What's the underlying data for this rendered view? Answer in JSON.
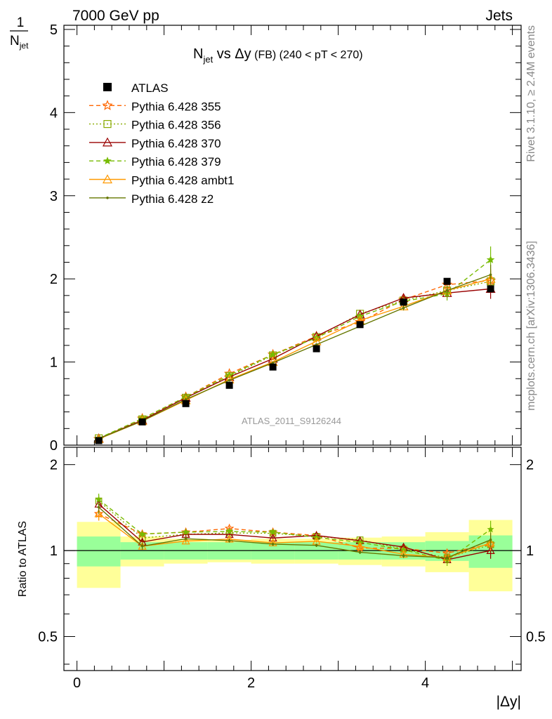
{
  "header": {
    "left": "7000 GeV pp",
    "right": "Jets"
  },
  "side_texts": {
    "rivet": "Rivet 3.1.10, ≥ 2.4M events",
    "mcplots": "mcplots.cern.ch [arXiv:1306.3436]"
  },
  "watermark": "ATLAS_2011_S9126244",
  "chart_data": {
    "type": "line",
    "title": {
      "main": "N",
      "main_sub": "jet",
      "vs": " vs Δy",
      "fb": " (FB)",
      "range": " (240 < pT < 270)"
    },
    "ylabel": {
      "top": "1",
      "bottom": "N",
      "bottom_sub": "jet"
    },
    "xlabel": "|Δy|",
    "ratio_ylabel": "Ratio to ATLAS",
    "xlim": [
      -0.15,
      5.1
    ],
    "ylim": [
      0,
      5.05
    ],
    "ratio_ylim": [
      0.38,
      2.3
    ],
    "x_ticks": [
      "0",
      "2",
      "4"
    ],
    "y_ticks": [
      "0",
      "1",
      "2",
      "3",
      "4",
      "5"
    ],
    "ratio_ticks": [
      "0.5",
      "1",
      "2"
    ],
    "x": [
      0.25,
      0.75,
      1.25,
      1.75,
      2.25,
      2.75,
      3.25,
      3.75,
      4.25,
      4.75
    ],
    "data_bins": [
      [
        0,
        0.5
      ],
      [
        0.5,
        1.0
      ],
      [
        1.0,
        1.5
      ],
      [
        1.5,
        2.0
      ],
      [
        2.0,
        2.5
      ],
      [
        2.5,
        3.0
      ],
      [
        3.0,
        3.5
      ],
      [
        3.5,
        4.0
      ],
      [
        4.0,
        4.5
      ],
      [
        4.5,
        5.0
      ]
    ],
    "data": {
      "name": "ATLAS",
      "values": [
        0.055,
        0.28,
        0.5,
        0.72,
        0.94,
        1.16,
        1.45,
        1.72,
        1.97,
        1.88
      ],
      "band_stat_rel": [
        0.12,
        0.07,
        0.07,
        0.07,
        0.07,
        0.07,
        0.07,
        0.07,
        0.08,
        0.13
      ],
      "band_total_rel": [
        0.26,
        0.12,
        0.1,
        0.09,
        0.1,
        0.1,
        0.11,
        0.12,
        0.16,
        0.28
      ]
    },
    "series": [
      {
        "name": "Pythia 6.428 355",
        "color": "#ff6600",
        "dash": "6,4",
        "marker": "star-open",
        "values": [
          0.074,
          0.32,
          0.58,
          0.86,
          1.09,
          1.31,
          1.48,
          1.75,
          1.93,
          1.98
        ],
        "errors": [
          0.004,
          0.008,
          0.01,
          0.012,
          0.014,
          0.016,
          0.02,
          0.03,
          0.06,
          0.12
        ]
      },
      {
        "name": "Pythia 6.428 356",
        "color": "#88aa00",
        "dash": "2,3",
        "marker": "square-open",
        "values": [
          0.082,
          0.31,
          0.57,
          0.83,
          1.08,
          1.3,
          1.58,
          1.74,
          1.86,
          1.97
        ],
        "errors": [
          0.004,
          0.008,
          0.01,
          0.012,
          0.014,
          0.016,
          0.02,
          0.03,
          0.06,
          0.12
        ]
      },
      {
        "name": "Pythia 6.428 370",
        "color": "#990000",
        "dash": "",
        "marker": "triangle-open",
        "values": [
          0.08,
          0.3,
          0.57,
          0.82,
          1.04,
          1.31,
          1.57,
          1.77,
          1.83,
          1.88
        ],
        "errors": [
          0.004,
          0.008,
          0.01,
          0.012,
          0.014,
          0.016,
          0.02,
          0.03,
          0.06,
          0.12
        ]
      },
      {
        "name": "Pythia 6.428 379",
        "color": "#77bb00",
        "dash": "6,4",
        "marker": "star-filled",
        "values": [
          0.083,
          0.32,
          0.58,
          0.84,
          1.09,
          1.29,
          1.55,
          1.73,
          1.82,
          2.23
        ],
        "errors": [
          0.004,
          0.008,
          0.01,
          0.012,
          0.014,
          0.016,
          0.02,
          0.03,
          0.08,
          0.16
        ]
      },
      {
        "name": "Pythia 6.428 ambt1",
        "color": "#ff9900",
        "dash": "",
        "marker": "triangle-open",
        "values": [
          0.074,
          0.29,
          0.54,
          0.79,
          1.0,
          1.25,
          1.5,
          1.67,
          1.86,
          2.0
        ],
        "errors": [
          0.004,
          0.008,
          0.01,
          0.012,
          0.014,
          0.016,
          0.02,
          0.03,
          0.06,
          0.12
        ]
      },
      {
        "name": "Pythia 6.428 z2",
        "color": "#667700",
        "dash": "",
        "marker": "dot",
        "values": [
          0.078,
          0.29,
          0.55,
          0.78,
          0.99,
          1.21,
          1.43,
          1.65,
          1.86,
          2.05
        ],
        "errors": [
          0.004,
          0.008,
          0.01,
          0.012,
          0.014,
          0.016,
          0.02,
          0.03,
          0.06,
          0.12
        ]
      }
    ],
    "legend_position": "top-left",
    "grid": false
  }
}
